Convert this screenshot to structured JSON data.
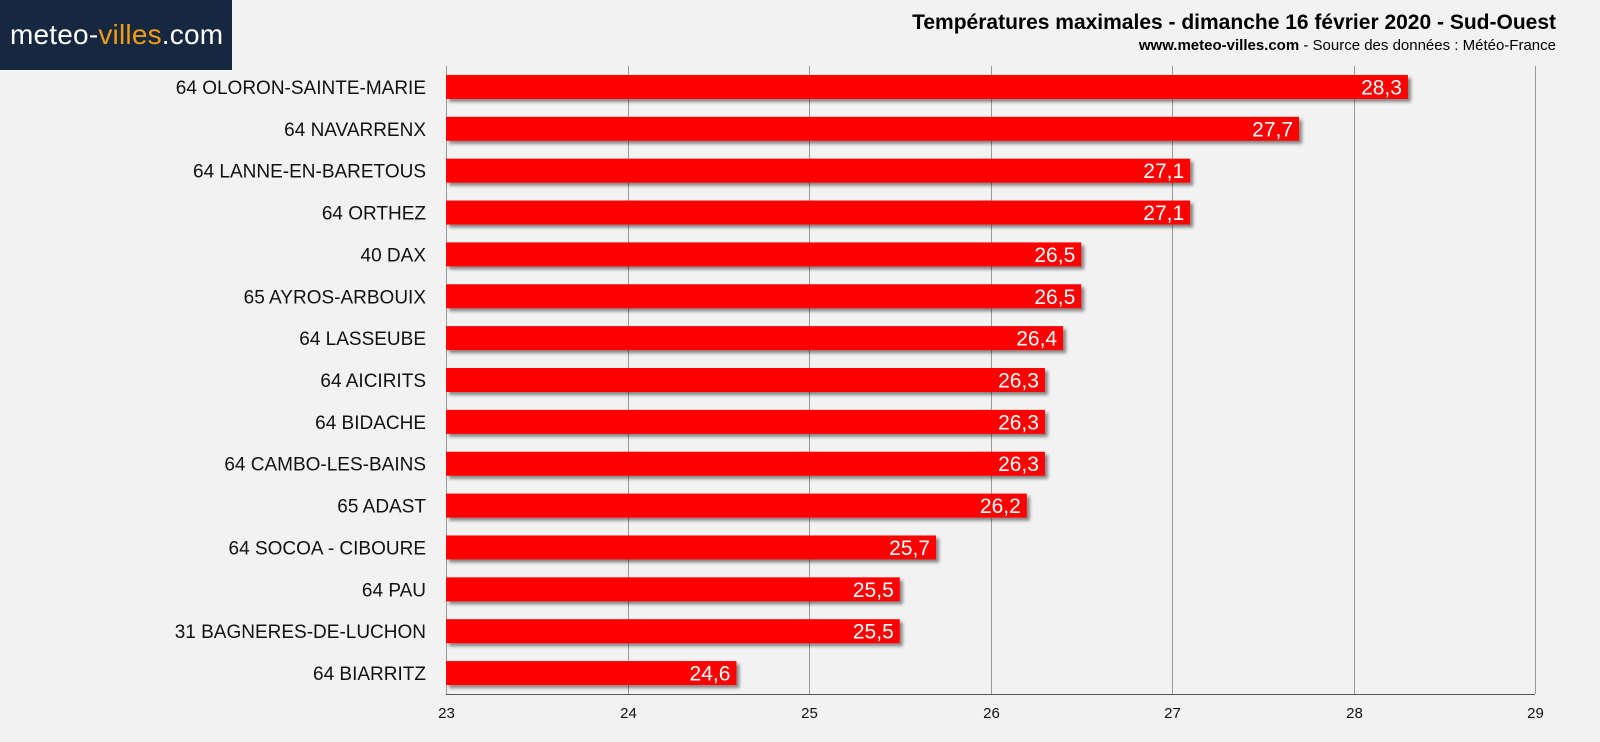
{
  "logo": {
    "part1": "meteo-",
    "part2": "villes",
    "part3": ".com",
    "color_accent": "#f39c12",
    "color_bg": "#16283f"
  },
  "header": {
    "title": "Températures maximales - dimanche 16 février 2020 - Sud-Ouest",
    "site": "www.meteo-villes.com",
    "source": " - Source des données : Météo-France"
  },
  "colors": {
    "bar": "#ff0000",
    "grid": "#999999",
    "background": "#f2f2f2"
  },
  "chart_data": {
    "type": "bar",
    "orientation": "horizontal",
    "title": "Températures maximales - dimanche 16 février 2020 - Sud-Ouest",
    "xlabel": "",
    "ylabel": "",
    "xlim": [
      23,
      29
    ],
    "ticks": [
      "23",
      "24",
      "25",
      "26",
      "27",
      "28",
      "29"
    ],
    "grid": true,
    "categories": [
      "64 OLORON-SAINTE-MARIE",
      "64 NAVARRENX",
      "64 LANNE-EN-BARETOUS",
      "64 ORTHEZ",
      "40 DAX",
      "65 AYROS-ARBOUIX",
      "64 LASSEUBE",
      "64 AICIRITS",
      "64 BIDACHE",
      "64 CAMBO-LES-BAINS",
      "65 ADAST",
      "64 SOCOA - CIBOURE",
      "64 PAU",
      "31 BAGNERES-DE-LUCHON",
      "64 BIARRITZ"
    ],
    "values": [
      28.3,
      27.7,
      27.1,
      27.1,
      26.5,
      26.5,
      26.4,
      26.3,
      26.3,
      26.3,
      26.2,
      25.7,
      25.5,
      25.5,
      24.6
    ],
    "value_labels": [
      "28,3",
      "27,7",
      "27,1",
      "27,1",
      "26,5",
      "26,5",
      "26,4",
      "26,3",
      "26,3",
      "26,3",
      "26,2",
      "25,7",
      "25,5",
      "25,5",
      "24,6"
    ]
  }
}
